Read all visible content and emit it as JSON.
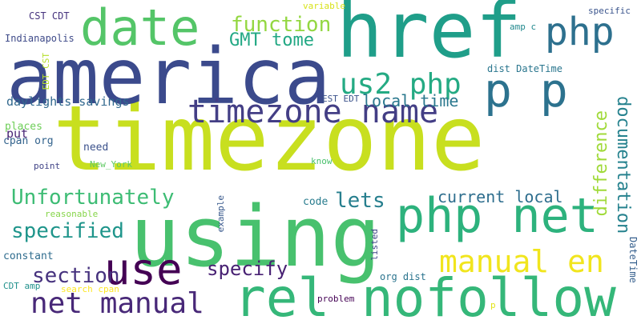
{
  "words": [
    {
      "text": "timezone",
      "color": "#c8df1f"
    },
    {
      "text": "america",
      "color": "#3b4a8c"
    },
    {
      "text": "href",
      "color": "#1f9e89"
    },
    {
      "text": "using",
      "color": "#48c16e"
    },
    {
      "text": "date",
      "color": "#54c568"
    },
    {
      "text": "rel nofollow",
      "color": "#35b779"
    },
    {
      "text": "php net",
      "color": "#2db27d"
    },
    {
      "text": "p p",
      "color": "#2c728e"
    },
    {
      "text": "php",
      "color": "#2d708e"
    },
    {
      "text": "use",
      "color": "#440154"
    },
    {
      "text": "timezone name",
      "color": "#433e85"
    },
    {
      "text": "us2 php",
      "color": "#24aa83"
    },
    {
      "text": "manual en",
      "color": "#f1e51d"
    },
    {
      "text": "net manual",
      "color": "#482878"
    },
    {
      "text": "function",
      "color": "#93d741"
    },
    {
      "text": "GMT tome",
      "color": "#22a884"
    },
    {
      "text": "local time",
      "color": "#2a788e"
    },
    {
      "text": "Unfortunately",
      "color": "#3dbc74"
    },
    {
      "text": "specified",
      "color": "#1f958b"
    },
    {
      "text": "specify",
      "color": "#482173"
    },
    {
      "text": "section",
      "color": "#46327e"
    },
    {
      "text": "lets",
      "color": "#277f8e"
    },
    {
      "text": "current local",
      "color": "#2e6e8e"
    },
    {
      "text": "documentation",
      "color": "#26828e"
    },
    {
      "text": "difference",
      "color": "#a0da39"
    },
    {
      "text": "daylights savings",
      "color": "#31688e"
    },
    {
      "text": "Indianapolis",
      "color": "#3e4a89"
    },
    {
      "text": "CST CDT",
      "color": "#46337e"
    },
    {
      "text": "put",
      "color": "#482475"
    },
    {
      "text": "EDT CST",
      "color": "#b5de2b"
    },
    {
      "text": "places",
      "color": "#6ece58"
    },
    {
      "text": "cpan org",
      "color": "#33638d"
    },
    {
      "text": "need",
      "color": "#3b518b"
    },
    {
      "text": "point",
      "color": "#414487"
    },
    {
      "text": "New_York",
      "color": "#5ec962"
    },
    {
      "text": "know",
      "color": "#4ac16d"
    },
    {
      "text": "reasonable",
      "color": "#86d549"
    },
    {
      "text": "constant",
      "color": "#2f6c8e"
    },
    {
      "text": "CDT amp",
      "color": "#21918c"
    },
    {
      "text": "search cpan",
      "color": "#fde725"
    },
    {
      "text": "code",
      "color": "#287c8e"
    },
    {
      "text": "example",
      "color": "#38598c"
    },
    {
      "text": "listed",
      "color": "#3f4788"
    },
    {
      "text": "org dist",
      "color": "#2b748e"
    },
    {
      "text": "problem",
      "color": "#440154"
    },
    {
      "text": "p",
      "color": "#e2e418"
    },
    {
      "text": "DateTime",
      "color": "#355f8d"
    },
    {
      "text": "variable",
      "color": "#d8e219"
    },
    {
      "text": "amp c",
      "color": "#23898e"
    },
    {
      "text": "specific",
      "color": "#3a548c"
    },
    {
      "text": "dist DateTime",
      "color": "#2a768e"
    },
    {
      "text": "EST EDT",
      "color": "#3b528b"
    }
  ]
}
